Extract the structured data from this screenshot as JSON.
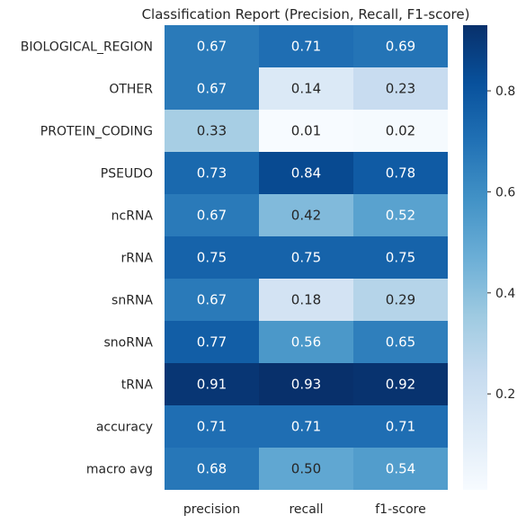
{
  "chart_data": {
    "type": "heatmap",
    "title": "Classification Report (Precision, Recall, F1-score)",
    "columns": [
      "precision",
      "recall",
      "f1-score"
    ],
    "rows": [
      "BIOLOGICAL_REGION",
      "OTHER",
      "PROTEIN_CODING",
      "PSEUDO",
      "ncRNA",
      "rRNA",
      "snRNA",
      "snoRNA",
      "tRNA",
      "accuracy",
      "macro avg"
    ],
    "values": [
      [
        0.67,
        0.71,
        0.69
      ],
      [
        0.67,
        0.14,
        0.23
      ],
      [
        0.33,
        0.01,
        0.02
      ],
      [
        0.73,
        0.84,
        0.78
      ],
      [
        0.67,
        0.42,
        0.52
      ],
      [
        0.75,
        0.75,
        0.75
      ],
      [
        0.67,
        0.18,
        0.29
      ],
      [
        0.77,
        0.56,
        0.65
      ],
      [
        0.91,
        0.93,
        0.92
      ],
      [
        0.71,
        0.71,
        0.71
      ],
      [
        0.68,
        0.5,
        0.54
      ]
    ],
    "value_labels": [
      [
        "0.67",
        "0.71",
        "0.69"
      ],
      [
        "0.67",
        "0.14",
        "0.23"
      ],
      [
        "0.33",
        "0.01",
        "0.02"
      ],
      [
        "0.73",
        "0.84",
        "0.78"
      ],
      [
        "0.67",
        "0.42",
        "0.52"
      ],
      [
        "0.75",
        "0.75",
        "0.75"
      ],
      [
        "0.67",
        "0.18",
        "0.29"
      ],
      [
        "0.77",
        "0.56",
        "0.65"
      ],
      [
        "0.91",
        "0.93",
        "0.92"
      ],
      [
        "0.71",
        "0.71",
        "0.71"
      ],
      [
        "0.68",
        "0.50",
        "0.54"
      ]
    ],
    "colorbar": {
      "colormap": "Blues",
      "range": [
        0.01,
        0.93
      ],
      "ticks": [
        0.2,
        0.4,
        0.6,
        0.8
      ],
      "tick_labels": [
        "0.2",
        "0.4",
        "0.6",
        "0.8"
      ]
    }
  }
}
